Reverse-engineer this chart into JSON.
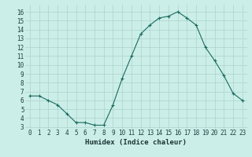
{
  "x": [
    0,
    1,
    2,
    3,
    4,
    5,
    6,
    7,
    8,
    9,
    10,
    11,
    12,
    13,
    14,
    15,
    16,
    17,
    18,
    19,
    20,
    21,
    22,
    23
  ],
  "y": [
    6.5,
    6.5,
    6.0,
    5.5,
    4.5,
    3.5,
    3.5,
    3.2,
    3.2,
    5.5,
    8.5,
    11.0,
    13.5,
    14.5,
    15.3,
    15.5,
    16.0,
    15.3,
    14.5,
    12.0,
    10.5,
    8.8,
    6.8,
    6.0
  ],
  "xlabel": "Humidex (Indice chaleur)",
  "xlim": [
    -0.5,
    23.5
  ],
  "ylim": [
    2.8,
    16.8
  ],
  "yticks": [
    3,
    4,
    5,
    6,
    7,
    8,
    9,
    10,
    11,
    12,
    13,
    14,
    15,
    16
  ],
  "xticks": [
    0,
    1,
    2,
    3,
    4,
    5,
    6,
    7,
    8,
    9,
    10,
    11,
    12,
    13,
    14,
    15,
    16,
    17,
    18,
    19,
    20,
    21,
    22,
    23
  ],
  "line_color": "#1a6b60",
  "marker": "+",
  "bg_color": "#cceee8",
  "grid_color": "#aad4cc",
  "tick_label_color": "#1a4040",
  "xlabel_color": "#1a3535",
  "xlabel_fontsize": 6.5,
  "tick_fontsize": 5.5
}
